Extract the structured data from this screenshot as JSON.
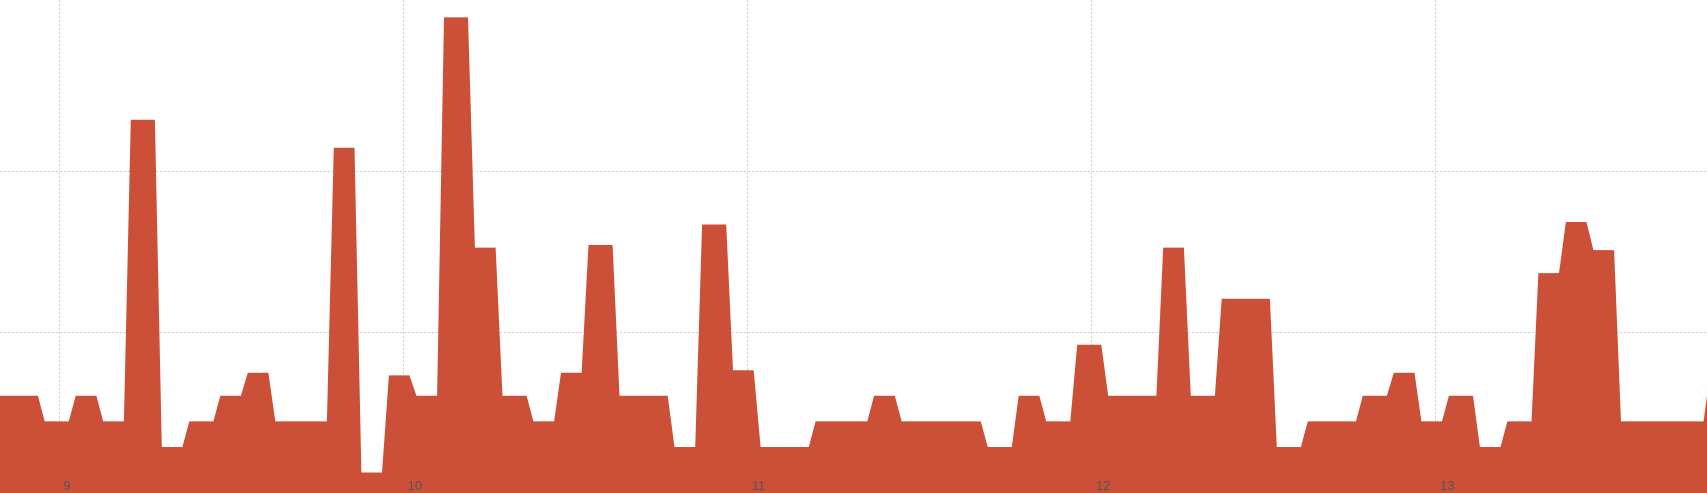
{
  "chart_data": {
    "type": "area",
    "color": "#cc5038",
    "grid": true,
    "xlim": [
      8.83,
      13.79
    ],
    "ylim": [
      0,
      18.5
    ],
    "xticks": [
      9,
      10,
      11,
      12,
      13
    ],
    "xtick_labels": [
      "9",
      "10",
      "11",
      "12",
      "13"
    ],
    "yticks": [
      6.3,
      12.6
    ],
    "points": [
      [
        8.83,
        3.8
      ],
      [
        8.94,
        3.8
      ],
      [
        8.96,
        2.8
      ],
      [
        9.03,
        2.8
      ],
      [
        9.05,
        3.8
      ],
      [
        9.11,
        3.8
      ],
      [
        9.13,
        2.8
      ],
      [
        9.19,
        2.8
      ],
      [
        9.21,
        14.6
      ],
      [
        9.28,
        14.6
      ],
      [
        9.3,
        1.8
      ],
      [
        9.36,
        1.8
      ],
      [
        9.38,
        2.8
      ],
      [
        9.45,
        2.8
      ],
      [
        9.47,
        3.8
      ],
      [
        9.53,
        3.8
      ],
      [
        9.55,
        4.7
      ],
      [
        9.61,
        4.7
      ],
      [
        9.63,
        2.8
      ],
      [
        9.78,
        2.8
      ],
      [
        9.8,
        13.5
      ],
      [
        9.86,
        13.5
      ],
      [
        9.88,
        0.8
      ],
      [
        9.94,
        0.8
      ],
      [
        9.96,
        4.6
      ],
      [
        10.02,
        4.6
      ],
      [
        10.04,
        3.8
      ],
      [
        10.1,
        3.8
      ],
      [
        10.12,
        18.6
      ],
      [
        10.19,
        18.6
      ],
      [
        10.21,
        9.6
      ],
      [
        10.27,
        9.6
      ],
      [
        10.29,
        3.8
      ],
      [
        10.36,
        3.8
      ],
      [
        10.38,
        2.8
      ],
      [
        10.44,
        2.8
      ],
      [
        10.46,
        4.7
      ],
      [
        10.52,
        4.7
      ],
      [
        10.54,
        9.7
      ],
      [
        10.61,
        9.7
      ],
      [
        10.63,
        3.8
      ],
      [
        10.7,
        3.8
      ],
      [
        10.77,
        3.8
      ],
      [
        10.79,
        1.8
      ],
      [
        10.85,
        1.8
      ],
      [
        10.87,
        10.5
      ],
      [
        10.94,
        10.5
      ],
      [
        10.96,
        4.8
      ],
      [
        11.02,
        4.8
      ],
      [
        11.04,
        1.8
      ],
      [
        11.18,
        1.8
      ],
      [
        11.2,
        2.8
      ],
      [
        11.35,
        2.8
      ],
      [
        11.37,
        3.8
      ],
      [
        11.43,
        3.8
      ],
      [
        11.45,
        2.8
      ],
      [
        11.68,
        2.8
      ],
      [
        11.7,
        1.8
      ],
      [
        11.77,
        1.8
      ],
      [
        11.79,
        3.8
      ],
      [
        11.85,
        3.8
      ],
      [
        11.87,
        2.8
      ],
      [
        11.94,
        2.8
      ],
      [
        11.96,
        5.8
      ],
      [
        12.03,
        5.8
      ],
      [
        12.05,
        3.8
      ],
      [
        12.19,
        3.8
      ],
      [
        12.21,
        9.6
      ],
      [
        12.27,
        9.6
      ],
      [
        12.29,
        3.8
      ],
      [
        12.36,
        3.8
      ],
      [
        12.38,
        7.6
      ],
      [
        12.52,
        7.6
      ],
      [
        12.54,
        1.8
      ],
      [
        12.61,
        1.8
      ],
      [
        12.63,
        2.8
      ],
      [
        12.77,
        2.8
      ],
      [
        12.79,
        3.8
      ],
      [
        12.86,
        3.8
      ],
      [
        12.88,
        4.7
      ],
      [
        12.94,
        4.7
      ],
      [
        12.96,
        2.8
      ],
      [
        13.02,
        2.8
      ],
      [
        13.04,
        3.8
      ],
      [
        13.11,
        3.8
      ],
      [
        13.13,
        1.8
      ],
      [
        13.19,
        1.8
      ],
      [
        13.21,
        2.8
      ],
      [
        13.28,
        2.8
      ],
      [
        13.3,
        8.6
      ],
      [
        13.36,
        8.6
      ],
      [
        13.38,
        10.6
      ],
      [
        13.44,
        10.6
      ],
      [
        13.46,
        9.5
      ],
      [
        13.52,
        9.5
      ],
      [
        13.54,
        2.8
      ],
      [
        13.78,
        2.8
      ],
      [
        13.79,
        3.8
      ]
    ]
  }
}
